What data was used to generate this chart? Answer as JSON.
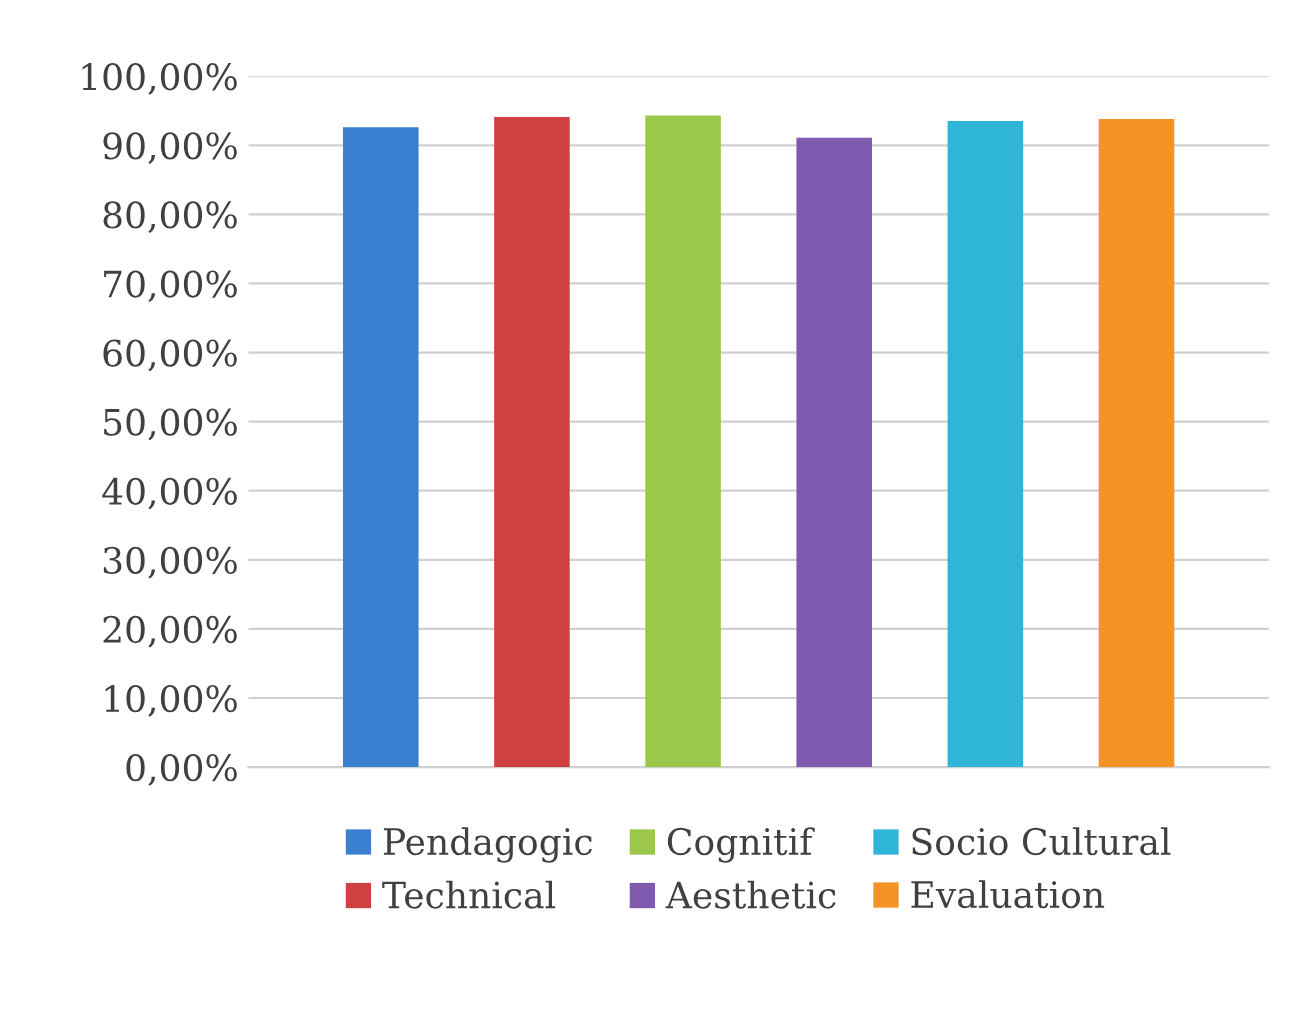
{
  "chart_data": {
    "type": "bar",
    "categories": [
      null
    ],
    "series": [
      {
        "name": "Pendagogic",
        "color": "#3a7fd0",
        "values": [
          92.6
        ]
      },
      {
        "name": "Technical",
        "color": "#d04040",
        "values": [
          94.1
        ]
      },
      {
        "name": "Cognitif",
        "color": "#9bc84a",
        "values": [
          94.3
        ]
      },
      {
        "name": "Aesthetic",
        "color": "#7f5bb0",
        "values": [
          91.1
        ]
      },
      {
        "name": "Socio Cultural",
        "color": "#2fb5d8",
        "values": [
          93.5
        ]
      },
      {
        "name": "Evaluation",
        "color": "#f39225",
        "values": [
          93.8
        ]
      }
    ],
    "ylim": [
      0,
      100
    ],
    "yticks": [
      {
        "value": 0,
        "label": "0,00%"
      },
      {
        "value": 10,
        "label": "10,00%"
      },
      {
        "value": 20,
        "label": "20,00%"
      },
      {
        "value": 30,
        "label": "30,00%"
      },
      {
        "value": 40,
        "label": "40,00%"
      },
      {
        "value": 50,
        "label": "50,00%"
      },
      {
        "value": 60,
        "label": "60,00%"
      },
      {
        "value": 70,
        "label": "70,00%"
      },
      {
        "value": 80,
        "label": "80,00%"
      },
      {
        "value": 90,
        "label": "90,00%"
      },
      {
        "value": 100,
        "label": "100,00%"
      }
    ],
    "grid": "y",
    "legend": "bottom"
  }
}
